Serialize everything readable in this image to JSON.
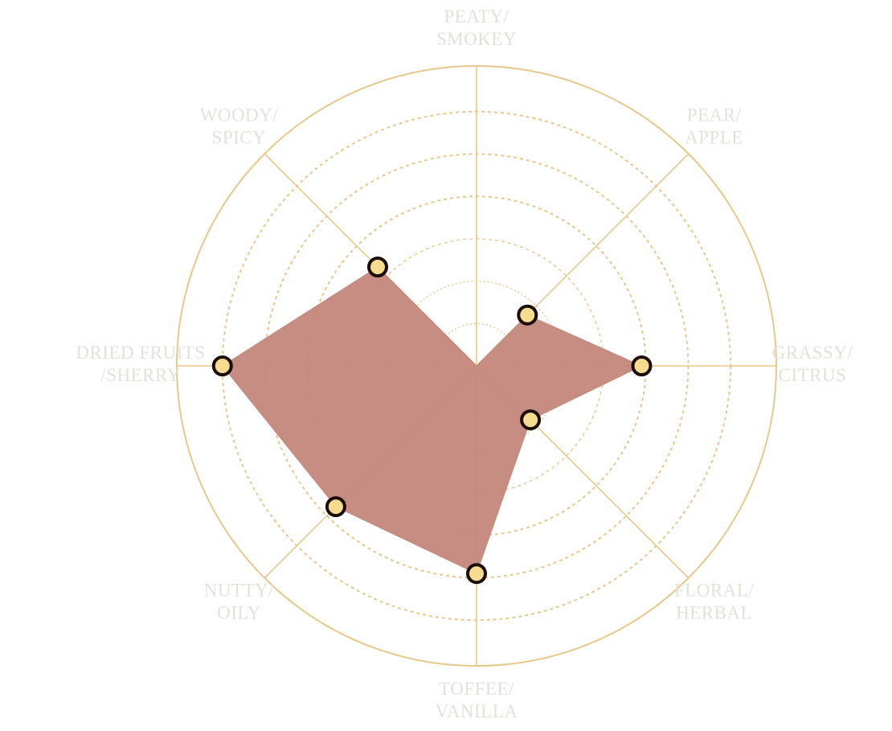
{
  "chart_data": {
    "type": "radar",
    "title": "",
    "axes": [
      {
        "label_lines": [
          "PEATY/",
          "SMOKEY"
        ],
        "value": 0
      },
      {
        "label_lines": [
          "PEAR/",
          "APPLE"
        ],
        "value": 1.7
      },
      {
        "label_lines": [
          "GRASSY/",
          "CITRUS"
        ],
        "value": 3.9
      },
      {
        "label_lines": [
          "FLORAL/",
          "HERBAL"
        ],
        "value": 1.8
      },
      {
        "label_lines": [
          "TOFFEE/",
          "VANILLA"
        ],
        "value": 4.9
      },
      {
        "label_lines": [
          "NUTTY/",
          "OILY"
        ],
        "value": 4.7
      },
      {
        "label_lines": [
          "DRIED FRUITS",
          "/SHERRY"
        ],
        "value": 6.0
      },
      {
        "label_lines": [
          "WOODY/",
          "SPICY"
        ],
        "value": 3.3
      }
    ],
    "scale_max": 7,
    "rings": [
      1,
      2,
      3,
      4,
      5,
      6
    ],
    "grid": true,
    "legend": "none"
  },
  "colors": {
    "grid": "#e6c98a",
    "label": "#e4e0da",
    "fill": "#c4877b",
    "marker_fill": "#f6dc8f",
    "marker_stroke": "#1b0d08"
  }
}
